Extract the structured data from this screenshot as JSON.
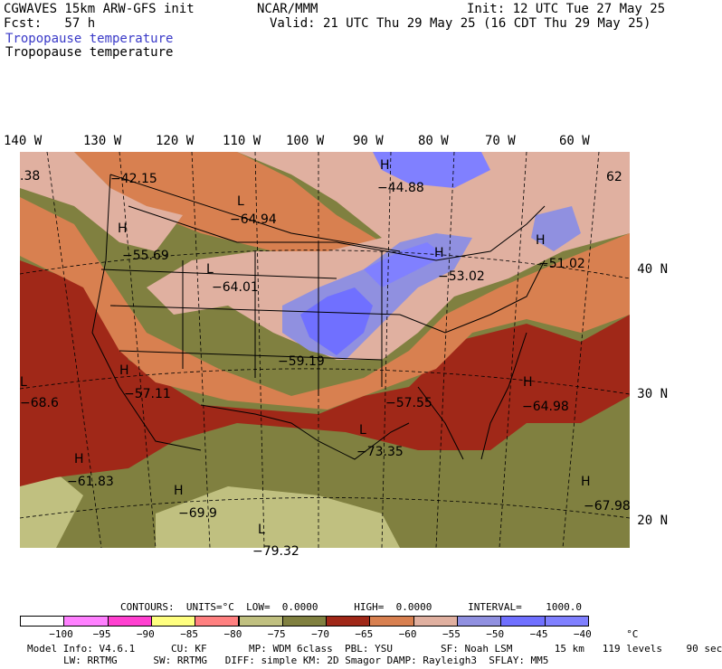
{
  "header": {
    "model_title": "CGWAVES 15km ARW-GFS init",
    "forecast": "Fcst:   57 h",
    "center": "NCAR/MMM",
    "init": "Init: 12 UTC Tue 27 May 25",
    "valid": "Valid: 21 UTC Thu 29 May 25 (16 CDT Thu 29 May 25)",
    "field_title_1": "Tropopause temperature",
    "field_title_2": "Tropopause temperature"
  },
  "axes": {
    "longitudes": [
      "140 W",
      "130 W",
      "120 W",
      "110 W",
      "100 W",
      "90 W",
      "80 W",
      "70 W",
      "60 W"
    ],
    "latitudes": [
      "40 N",
      "30 N",
      "20 N"
    ]
  },
  "map_labels": [
    {
      "mark": "L",
      "value": "-64.94"
    },
    {
      "mark": "H",
      "value": "-44.88"
    },
    {
      "mark": "H",
      "value": "-55.69"
    },
    {
      "mark": "L",
      "value": "-64.01"
    },
    {
      "mark": "H",
      "value": "-53.02"
    },
    {
      "mark": "H",
      "value": "-51.02"
    },
    {
      "mark": "",
      "value": "-59.19"
    },
    {
      "mark": "H",
      "value": "-57.11"
    },
    {
      "mark": "L",
      "value": "-68.6"
    },
    {
      "mark": "",
      "value": "-57.55"
    },
    {
      "mark": "H",
      "value": "-64.98"
    },
    {
      "mark": "L",
      "value": "-73.35"
    },
    {
      "mark": "H",
      "value": "-61.83"
    },
    {
      "mark": "H",
      "value": "-69.9"
    },
    {
      "mark": "H",
      "value": "-67.98"
    },
    {
      "mark": "L",
      "value": "-79.32"
    },
    {
      "mark": "",
      "value": "-42.15"
    },
    {
      "mark": "",
      "value": ".38"
    },
    {
      "mark": "",
      "value": "62"
    }
  ],
  "contours": {
    "text": "CONTOURS:  UNITS=°C  LOW=  0.0000      HIGH=  0.0000      INTERVAL=    1000.0"
  },
  "colorbar": {
    "colors": [
      "#ffffff",
      "#ff80ff",
      "#ff40d0",
      "#ffff80",
      "#ff8080",
      "#c0c080",
      "#808040",
      "#a02818",
      "#d88050",
      "#e0b0a0",
      "#9090e0",
      "#7070ff",
      "#8080ff"
    ],
    "labels": [
      "-100",
      "-95",
      "-90",
      "-85",
      "-80",
      "-75",
      "-70",
      "-65",
      "-60",
      "-55",
      "-50",
      "-45",
      "-40",
      "°C"
    ]
  },
  "footer": {
    "line1": "Model Info: V4.6.1      CU: KF       MP: WDM 6class  PBL: YSU        SF: Noah LSM       15 km   119 levels    90 sec",
    "line2": "LW: RRTMG      SW: RRTMG   DIFF: simple KM: 2D Smagor DAMP: Rayleigh3  SFLAY: MM5"
  }
}
